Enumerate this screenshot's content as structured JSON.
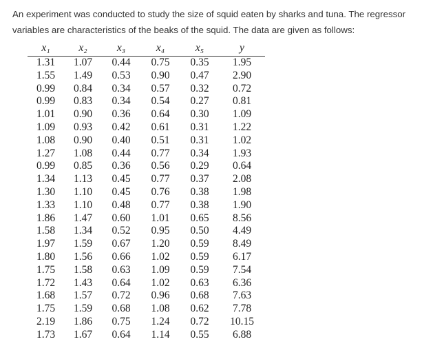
{
  "intro": "An experiment was conducted to study the size of squid eaten by sharks and tuna. The regressor variables are characteristics of the beaks of the squid. The data are given as follows:",
  "table": {
    "headers": [
      "x₁",
      "x₂",
      "x₃",
      "x₄",
      "x₅",
      "y"
    ],
    "rows": [
      [
        "1.31",
        "1.07",
        "0.44",
        "0.75",
        "0.35",
        "1.95"
      ],
      [
        "1.55",
        "1.49",
        "0.53",
        "0.90",
        "0.47",
        "2.90"
      ],
      [
        "0.99",
        "0.84",
        "0.34",
        "0.57",
        "0.32",
        "0.72"
      ],
      [
        "0.99",
        "0.83",
        "0.34",
        "0.54",
        "0.27",
        "0.81"
      ],
      [
        "1.01",
        "0.90",
        "0.36",
        "0.64",
        "0.30",
        "1.09"
      ],
      [
        "1.09",
        "0.93",
        "0.42",
        "0.61",
        "0.31",
        "1.22"
      ],
      [
        "1.08",
        "0.90",
        "0.40",
        "0.51",
        "0.31",
        "1.02"
      ],
      [
        "1.27",
        "1.08",
        "0.44",
        "0.77",
        "0.34",
        "1.93"
      ],
      [
        "0.99",
        "0.85",
        "0.36",
        "0.56",
        "0.29",
        "0.64"
      ],
      [
        "1.34",
        "1.13",
        "0.45",
        "0.77",
        "0.37",
        "2.08"
      ],
      [
        "1.30",
        "1.10",
        "0.45",
        "0.76",
        "0.38",
        "1.98"
      ],
      [
        "1.33",
        "1.10",
        "0.48",
        "0.77",
        "0.38",
        "1.90"
      ],
      [
        "1.86",
        "1.47",
        "0.60",
        "1.01",
        "0.65",
        "8.56"
      ],
      [
        "1.58",
        "1.34",
        "0.52",
        "0.95",
        "0.50",
        "4.49"
      ],
      [
        "1.97",
        "1.59",
        "0.67",
        "1.20",
        "0.59",
        "8.49"
      ],
      [
        "1.80",
        "1.56",
        "0.66",
        "1.02",
        "0.59",
        "6.17"
      ],
      [
        "1.75",
        "1.58",
        "0.63",
        "1.09",
        "0.59",
        "7.54"
      ],
      [
        "1.72",
        "1.43",
        "0.64",
        "1.02",
        "0.63",
        "6.36"
      ],
      [
        "1.68",
        "1.57",
        "0.72",
        "0.96",
        "0.68",
        "7.63"
      ],
      [
        "1.75",
        "1.59",
        "0.68",
        "1.08",
        "0.62",
        "7.78"
      ],
      [
        "2.19",
        "1.86",
        "0.75",
        "1.24",
        "0.72",
        "10.15"
      ],
      [
        "1.73",
        "1.67",
        "0.64",
        "1.14",
        "0.55",
        "6.88"
      ]
    ]
  }
}
